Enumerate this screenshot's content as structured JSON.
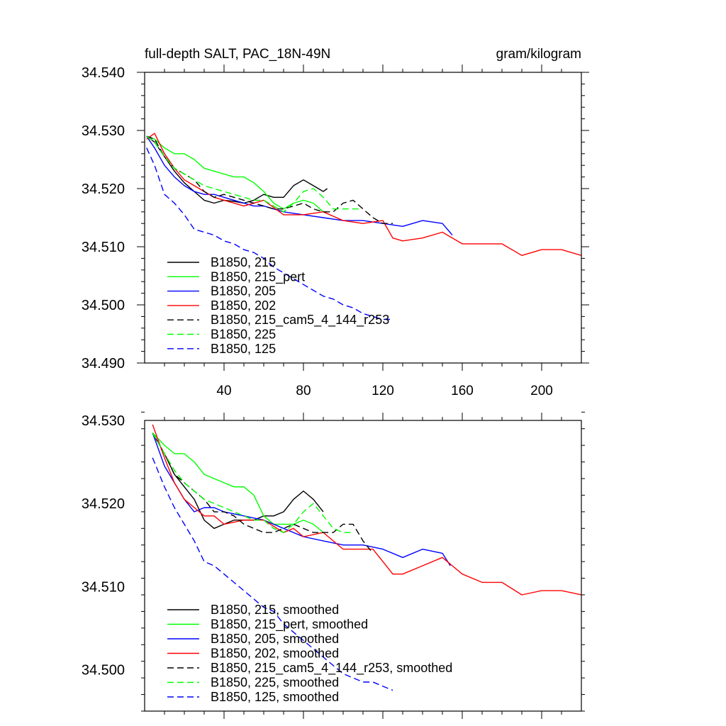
{
  "chart_data": [
    {
      "type": "line",
      "title": "full-depth SALT, PAC_18N-49N",
      "units": "gram/kilogram",
      "xlabel": "",
      "ylabel": "",
      "xlim": [
        0,
        220
      ],
      "ylim": [
        34.49,
        34.54
      ],
      "x_ticks": [
        40,
        80,
        120,
        160,
        200
      ],
      "x_tick_labels": [
        "40",
        "80",
        "120",
        "160",
        "200"
      ],
      "y_ticks": [
        34.49,
        34.5,
        34.51,
        34.52,
        34.53,
        34.54
      ],
      "y_tick_labels": [
        "34.490",
        "34.500",
        "34.510",
        "34.520",
        "34.530",
        "34.540"
      ],
      "legend_position": "bottom-left",
      "series": [
        {
          "name": "B1850, 215",
          "color": "#000000",
          "dash": "solid",
          "x": [
            1,
            5,
            10,
            15,
            20,
            25,
            30,
            35,
            40,
            45,
            50,
            55,
            60,
            65,
            70,
            75,
            80,
            85,
            90,
            92
          ],
          "y": [
            34.529,
            34.528,
            34.5255,
            34.523,
            34.521,
            34.5195,
            34.518,
            34.5175,
            34.518,
            34.5178,
            34.5175,
            34.518,
            34.519,
            34.5185,
            34.5185,
            34.5205,
            34.5215,
            34.5205,
            34.5195,
            34.52
          ]
        },
        {
          "name": "B1850, 215_pert",
          "color": "#00ff00",
          "dash": "solid",
          "x": [
            1,
            5,
            10,
            15,
            20,
            25,
            30,
            35,
            40,
            45,
            50,
            55,
            60,
            65,
            70,
            75,
            80,
            85,
            90,
            92
          ],
          "y": [
            34.529,
            34.5285,
            34.527,
            34.526,
            34.526,
            34.525,
            34.5235,
            34.523,
            34.5225,
            34.522,
            34.522,
            34.521,
            34.5195,
            34.5175,
            34.5165,
            34.5175,
            34.518,
            34.5175,
            34.516,
            34.516
          ]
        },
        {
          "name": "B1850, 205",
          "color": "#0000ff",
          "dash": "solid",
          "x": [
            1,
            5,
            10,
            15,
            20,
            25,
            30,
            35,
            40,
            45,
            50,
            55,
            60,
            65,
            70,
            80,
            90,
            100,
            110,
            120,
            130,
            140,
            150,
            155
          ],
          "y": [
            34.529,
            34.527,
            34.524,
            34.522,
            34.5205,
            34.5195,
            34.519,
            34.519,
            34.5185,
            34.518,
            34.5175,
            34.517,
            34.517,
            34.5165,
            34.516,
            34.5155,
            34.515,
            34.5145,
            34.5145,
            34.514,
            34.5135,
            34.5145,
            34.514,
            34.512
          ]
        },
        {
          "name": "B1850, 202",
          "color": "#ff0000",
          "dash": "solid",
          "x": [
            1,
            5,
            10,
            15,
            20,
            25,
            30,
            35,
            40,
            50,
            60,
            70,
            80,
            90,
            100,
            110,
            120,
            125,
            130,
            140,
            150,
            160,
            170,
            180,
            190,
            200,
            210,
            220
          ],
          "y": [
            34.5285,
            34.5295,
            34.526,
            34.5235,
            34.5215,
            34.5205,
            34.5195,
            34.5185,
            34.518,
            34.517,
            34.518,
            34.5155,
            34.5155,
            34.516,
            34.5145,
            34.514,
            34.5145,
            34.5115,
            34.511,
            34.5115,
            34.5125,
            34.5105,
            34.5105,
            34.5105,
            34.5085,
            34.5095,
            34.5095,
            34.5085
          ]
        },
        {
          "name": "B1850, 215_cam5_4_144_r253",
          "color": "#000000",
          "dash": "dashed",
          "x": [
            1,
            5,
            10,
            15,
            20,
            25,
            30,
            35,
            40,
            45,
            50,
            55,
            60,
            65,
            70,
            75,
            80,
            85,
            90,
            95,
            100,
            105,
            110,
            115,
            120,
            125
          ],
          "y": [
            34.529,
            34.5285,
            34.5255,
            34.5235,
            34.5225,
            34.5215,
            34.5195,
            34.5185,
            34.519,
            34.5185,
            34.518,
            34.5175,
            34.517,
            34.5165,
            34.5165,
            34.517,
            34.5175,
            34.5165,
            34.516,
            34.516,
            34.5175,
            34.518,
            34.5165,
            34.515,
            34.514,
            34.514
          ]
        },
        {
          "name": "B1850, 225",
          "color": "#00ff00",
          "dash": "dashed",
          "x": [
            1,
            5,
            10,
            15,
            20,
            25,
            30,
            35,
            40,
            45,
            50,
            55,
            60,
            65,
            70,
            75,
            80,
            85,
            90,
            95,
            100,
            105,
            108
          ],
          "y": [
            34.529,
            34.528,
            34.5255,
            34.5235,
            34.5225,
            34.5215,
            34.5205,
            34.52,
            34.5195,
            34.519,
            34.5185,
            34.518,
            34.518,
            34.517,
            34.516,
            34.5175,
            34.5195,
            34.52,
            34.5185,
            34.5165,
            34.5165,
            34.5165,
            34.5165
          ]
        },
        {
          "name": "B1850, 125",
          "color": "#0000ff",
          "dash": "dashed",
          "x": [
            1,
            5,
            10,
            15,
            20,
            25,
            30,
            35,
            40,
            45,
            50,
            55,
            60,
            65,
            70,
            75,
            80,
            85,
            90,
            95,
            100,
            105,
            110,
            115,
            120,
            125
          ],
          "y": [
            34.527,
            34.524,
            34.519,
            34.5175,
            34.5155,
            34.513,
            34.5125,
            34.512,
            34.511,
            34.5105,
            34.5095,
            34.509,
            34.508,
            34.5065,
            34.5055,
            34.5045,
            34.5035,
            34.5025,
            34.5015,
            34.501,
            34.5,
            34.4995,
            34.4985,
            34.498,
            34.4975,
            34.4975
          ]
        }
      ]
    },
    {
      "type": "line",
      "title": "",
      "xlabel": "",
      "ylabel": "",
      "xlim": [
        0,
        220
      ],
      "ylim": [
        34.495,
        34.53
      ],
      "x_ticks": [
        40,
        80,
        120,
        160,
        200
      ],
      "y_ticks": [
        34.5,
        34.51,
        34.52,
        34.53
      ],
      "y_tick_labels": [
        "34.500",
        "34.510",
        "34.520",
        "34.530"
      ],
      "legend_position": "bottom-left",
      "series": [
        {
          "name": "B1850, 215, smoothed",
          "color": "#000000",
          "dash": "solid",
          "x": [
            4,
            10,
            15,
            20,
            25,
            30,
            35,
            40,
            45,
            50,
            55,
            60,
            65,
            70,
            75,
            80,
            85,
            90
          ],
          "y": [
            34.5285,
            34.526,
            34.5235,
            34.522,
            34.5205,
            34.518,
            34.517,
            34.5175,
            34.518,
            34.518,
            34.518,
            34.5185,
            34.5185,
            34.519,
            34.5205,
            34.5215,
            34.5205,
            34.519
          ]
        },
        {
          "name": "B1850, 215_pert, smoothed",
          "color": "#00ff00",
          "dash": "solid",
          "x": [
            4,
            10,
            15,
            20,
            25,
            30,
            35,
            40,
            45,
            50,
            55,
            60,
            65,
            70,
            75,
            80,
            85,
            90
          ],
          "y": [
            34.5285,
            34.527,
            34.526,
            34.526,
            34.525,
            34.5235,
            34.523,
            34.5225,
            34.522,
            34.522,
            34.521,
            34.5185,
            34.5175,
            34.5175,
            34.5175,
            34.518,
            34.5175,
            34.5165
          ]
        },
        {
          "name": "B1850, 205, smoothed",
          "color": "#0000ff",
          "dash": "solid",
          "x": [
            4,
            10,
            15,
            20,
            25,
            30,
            35,
            40,
            50,
            60,
            70,
            80,
            90,
            100,
            110,
            120,
            130,
            140,
            150,
            154
          ],
          "y": [
            34.5285,
            34.5245,
            34.5225,
            34.5205,
            34.519,
            34.5195,
            34.5195,
            34.519,
            34.5185,
            34.518,
            34.517,
            34.516,
            34.5155,
            34.515,
            34.515,
            34.5145,
            34.5135,
            34.5145,
            34.514,
            34.5125
          ]
        },
        {
          "name": "B1850, 202, smoothed",
          "color": "#ff0000",
          "dash": "solid",
          "x": [
            4,
            10,
            15,
            20,
            25,
            30,
            35,
            40,
            50,
            60,
            70,
            75,
            80,
            90,
            100,
            110,
            115,
            120,
            125,
            130,
            140,
            150,
            160,
            170,
            180,
            190,
            200,
            210,
            220
          ],
          "y": [
            34.5295,
            34.5255,
            34.5225,
            34.5205,
            34.5195,
            34.5185,
            34.5185,
            34.5175,
            34.518,
            34.518,
            34.5165,
            34.517,
            34.516,
            34.5165,
            34.5145,
            34.5145,
            34.5145,
            34.513,
            34.5115,
            34.5115,
            34.5125,
            34.5135,
            34.5115,
            34.5105,
            34.5105,
            34.509,
            34.5095,
            34.5095,
            34.509
          ]
        },
        {
          "name": "B1850, 215_cam5_4_144_r253, smoothed",
          "color": "#000000",
          "dash": "dashed",
          "x": [
            4,
            10,
            15,
            20,
            25,
            30,
            35,
            40,
            45,
            50,
            55,
            60,
            65,
            70,
            75,
            80,
            85,
            90,
            95,
            100,
            105,
            110,
            115
          ],
          "y": [
            34.5285,
            34.526,
            34.5235,
            34.5225,
            34.5215,
            34.5205,
            34.519,
            34.519,
            34.5185,
            34.5175,
            34.517,
            34.5165,
            34.5165,
            34.517,
            34.5175,
            34.517,
            34.5165,
            34.5165,
            34.5165,
            34.5175,
            34.5175,
            34.5155,
            34.514
          ]
        },
        {
          "name": "B1850, 225, smoothed",
          "color": "#00ff00",
          "dash": "dashed",
          "x": [
            4,
            10,
            15,
            20,
            25,
            30,
            35,
            40,
            45,
            50,
            55,
            60,
            65,
            70,
            75,
            80,
            85,
            90,
            95,
            100,
            105
          ],
          "y": [
            34.5285,
            34.526,
            34.524,
            34.5225,
            34.5215,
            34.5205,
            34.52,
            34.5195,
            34.519,
            34.5185,
            34.518,
            34.518,
            34.517,
            34.5165,
            34.5175,
            34.519,
            34.52,
            34.5185,
            34.517,
            34.5165,
            34.5165
          ]
        },
        {
          "name": "B1850, 125, smoothed",
          "color": "#0000ff",
          "dash": "dashed",
          "x": [
            4,
            10,
            15,
            20,
            25,
            30,
            35,
            40,
            45,
            50,
            55,
            60,
            65,
            70,
            75,
            80,
            85,
            90,
            95,
            100,
            105,
            110,
            115,
            120,
            125
          ],
          "y": [
            34.5255,
            34.522,
            34.5195,
            34.5175,
            34.5155,
            34.513,
            34.5125,
            34.5115,
            34.5105,
            34.5095,
            34.5085,
            34.5075,
            34.507,
            34.5055,
            34.5045,
            34.5035,
            34.5025,
            34.5015,
            34.5005,
            34.4995,
            34.499,
            34.4985,
            34.4985,
            34.498,
            34.4975
          ]
        }
      ]
    }
  ]
}
